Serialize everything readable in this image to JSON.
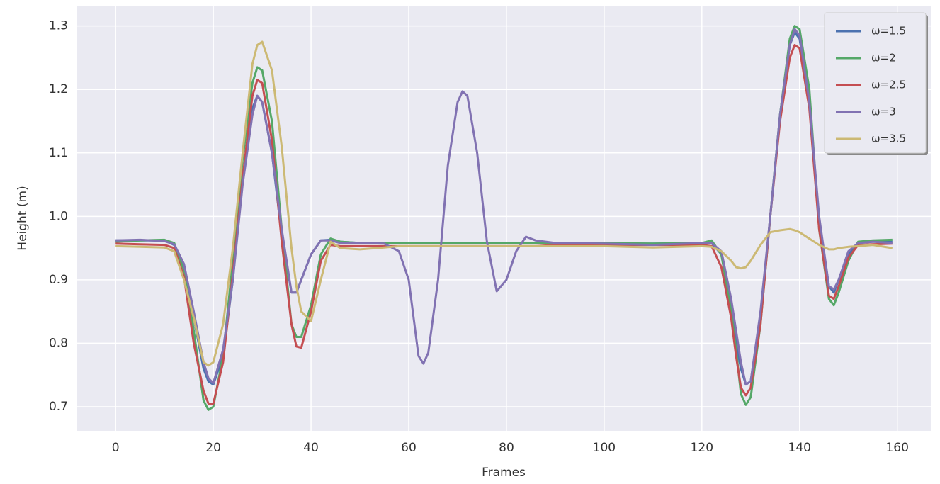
{
  "chart_data": {
    "type": "line",
    "xlabel": "Frames",
    "ylabel": "Height (m)",
    "xlim": [
      -8,
      167
    ],
    "ylim": [
      0.662,
      1.332
    ],
    "xticks": [
      0,
      20,
      40,
      60,
      80,
      100,
      120,
      140,
      160
    ],
    "yticks": [
      0.7,
      0.8,
      0.9,
      {
        "value": 1,
        "label": "1.0"
      },
      1.1,
      1.2,
      1.3
    ],
    "grid": true,
    "legend": "upper right",
    "x": [
      0,
      5,
      10,
      12,
      14,
      16,
      18,
      19,
      20,
      22,
      24,
      26,
      28,
      29,
      30,
      32,
      34,
      36,
      37,
      38,
      40,
      42,
      44,
      46,
      50,
      55,
      58,
      60,
      62,
      63,
      64,
      66,
      68,
      70,
      71,
      72,
      74,
      76,
      78,
      80,
      82,
      84,
      86,
      90,
      100,
      110,
      120,
      122,
      124,
      126,
      127,
      128,
      129,
      130,
      132,
      134,
      136,
      138,
      139,
      140,
      142,
      144,
      146,
      147,
      148,
      150,
      152,
      155,
      159
    ],
    "series": [
      {
        "name": "ω=1.5",
        "color": "#4c72b0",
        "values": [
          0.962,
          0.962,
          0.962,
          0.955,
          0.92,
          0.84,
          0.76,
          0.74,
          0.735,
          0.78,
          0.9,
          1.06,
          1.17,
          1.19,
          1.18,
          1.1,
          0.97,
          0.88,
          0.88,
          0.9,
          0.94,
          0.962,
          0.963,
          0.96,
          0.958,
          0.958,
          0.958,
          0.958,
          0.958,
          0.958,
          0.958,
          0.958,
          0.958,
          0.958,
          0.958,
          0.958,
          0.958,
          0.958,
          0.958,
          0.958,
          0.958,
          0.958,
          0.958,
          0.957,
          0.957,
          0.957,
          0.958,
          0.958,
          0.94,
          0.86,
          0.8,
          0.76,
          0.735,
          0.74,
          0.84,
          1.0,
          1.16,
          1.27,
          1.29,
          1.28,
          1.18,
          0.99,
          0.89,
          0.88,
          0.9,
          0.94,
          0.958,
          0.96,
          0.96
        ]
      },
      {
        "name": "ω=2",
        "color": "#55a868",
        "values": [
          0.96,
          0.962,
          0.963,
          0.958,
          0.915,
          0.82,
          0.71,
          0.695,
          0.7,
          0.78,
          0.93,
          1.09,
          1.21,
          1.235,
          1.23,
          1.15,
          0.98,
          0.83,
          0.81,
          0.81,
          0.86,
          0.94,
          0.965,
          0.96,
          0.958,
          0.958,
          0.958,
          0.958,
          0.958,
          0.958,
          0.958,
          0.958,
          0.958,
          0.958,
          0.958,
          0.958,
          0.958,
          0.958,
          0.958,
          0.958,
          0.958,
          0.958,
          0.958,
          0.958,
          0.958,
          0.957,
          0.958,
          0.962,
          0.94,
          0.85,
          0.79,
          0.72,
          0.703,
          0.715,
          0.83,
          1.0,
          1.16,
          1.28,
          1.3,
          1.295,
          1.2,
          0.98,
          0.87,
          0.86,
          0.88,
          0.93,
          0.96,
          0.962,
          0.963
        ]
      },
      {
        "name": "ω=2.5",
        "color": "#c44e52",
        "values": [
          0.957,
          0.956,
          0.955,
          0.95,
          0.905,
          0.8,
          0.725,
          0.705,
          0.705,
          0.77,
          0.91,
          1.06,
          1.19,
          1.215,
          1.21,
          1.12,
          0.96,
          0.83,
          0.795,
          0.793,
          0.85,
          0.93,
          0.955,
          0.953,
          0.953,
          0.953,
          0.953,
          0.953,
          0.953,
          0.953,
          0.953,
          0.953,
          0.953,
          0.953,
          0.953,
          0.953,
          0.953,
          0.953,
          0.953,
          0.953,
          0.953,
          0.953,
          0.953,
          0.955,
          0.955,
          0.955,
          0.955,
          0.953,
          0.92,
          0.84,
          0.78,
          0.73,
          0.718,
          0.73,
          0.83,
          1.0,
          1.15,
          1.25,
          1.27,
          1.265,
          1.17,
          0.98,
          0.875,
          0.87,
          0.89,
          0.935,
          0.955,
          0.956,
          0.957
        ]
      },
      {
        "name": "ω=3",
        "color": "#8172b2",
        "values": [
          0.962,
          0.963,
          0.961,
          0.956,
          0.925,
          0.85,
          0.77,
          0.745,
          0.737,
          0.79,
          0.9,
          1.05,
          1.16,
          1.19,
          1.18,
          1.1,
          0.98,
          0.88,
          0.88,
          0.9,
          0.94,
          0.962,
          0.962,
          0.958,
          0.958,
          0.957,
          0.945,
          0.9,
          0.78,
          0.768,
          0.785,
          0.9,
          1.08,
          1.18,
          1.197,
          1.19,
          1.1,
          0.96,
          0.882,
          0.9,
          0.945,
          0.968,
          0.962,
          0.958,
          0.957,
          0.955,
          0.958,
          0.958,
          0.945,
          0.87,
          0.82,
          0.77,
          0.735,
          0.74,
          0.85,
          1.0,
          1.16,
          1.27,
          1.295,
          1.285,
          1.18,
          1.0,
          0.89,
          0.885,
          0.9,
          0.945,
          0.958,
          0.96,
          0.958
        ]
      },
      {
        "name": "ω=3.5",
        "color": "#ccb974",
        "values": [
          0.953,
          0.952,
          0.951,
          0.945,
          0.9,
          0.84,
          0.77,
          0.765,
          0.77,
          0.83,
          0.95,
          1.1,
          1.24,
          1.27,
          1.275,
          1.23,
          1.11,
          0.95,
          0.89,
          0.85,
          0.835,
          0.9,
          0.96,
          0.95,
          0.948,
          0.951,
          0.953,
          0.953,
          0.953,
          0.953,
          0.953,
          0.953,
          0.953,
          0.953,
          0.953,
          0.953,
          0.953,
          0.953,
          0.953,
          0.953,
          0.953,
          0.953,
          0.953,
          0.953,
          0.953,
          0.951,
          0.953,
          0.952,
          0.945,
          0.93,
          0.92,
          0.918,
          0.92,
          0.93,
          0.955,
          0.975,
          0.978,
          0.98,
          0.978,
          0.975,
          0.965,
          0.955,
          0.948,
          0.948,
          0.95,
          0.952,
          0.953,
          0.955,
          0.95
        ]
      }
    ]
  }
}
